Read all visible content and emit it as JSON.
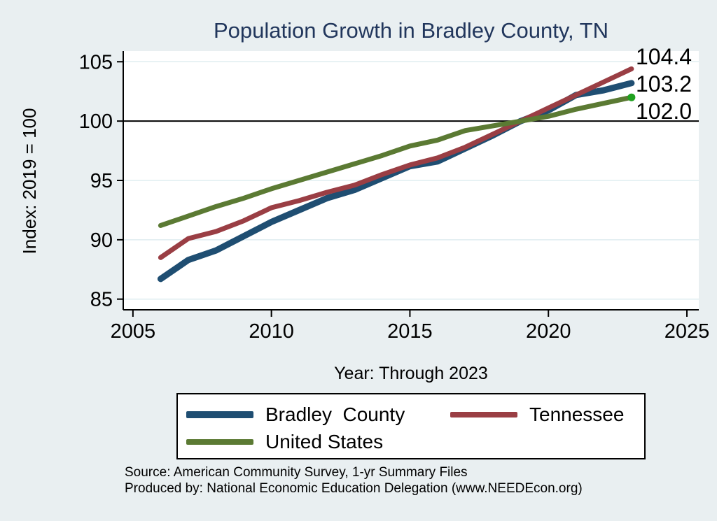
{
  "colors": {
    "background": "#e9eff1",
    "plot_background": "#ffffff",
    "title_text": "#21365c",
    "axis": "#000000"
  },
  "footnotes": {
    "source": "Source: American Community Survey, 1-yr Summary Files",
    "produced_by": "Produced by: National Economic Education Delegation (www.NEEDEcon.org)"
  },
  "chart_data": {
    "type": "line",
    "title": "Population Growth in Bradley County, TN",
    "xlabel": "Year: Through 2023",
    "ylabel": "Index: 2019 = 100",
    "grid": true,
    "grid_color": "#dfedf0",
    "legend_position": "bottom",
    "ref_line": 100,
    "xlim": [
      2004.65,
      2025.43
    ],
    "ylim": [
      84.1,
      105.9
    ],
    "x_ticks": [
      2005,
      2010,
      2015,
      2020,
      2025
    ],
    "y_ticks": [
      85,
      90,
      95,
      100,
      105
    ],
    "x": [
      2006,
      2007,
      2008,
      2009,
      2010,
      2011,
      2012,
      2013,
      2014,
      2015,
      2016,
      2017,
      2018,
      2019,
      2020,
      2021,
      2022,
      2023
    ],
    "series": [
      {
        "name": "Bradley  County",
        "color": "#1f4e72",
        "width": 9,
        "values": [
          86.7,
          88.3,
          89.1,
          90.3,
          91.5,
          92.5,
          93.5,
          94.2,
          95.2,
          96.2,
          96.6,
          97.7,
          98.8,
          100,
          100.9,
          102.2,
          102.6,
          103.2
        ]
      },
      {
        "name": "Tennessee",
        "color": "#9a3e44",
        "width": 7,
        "values": [
          88.5,
          90.1,
          90.7,
          91.6,
          92.7,
          93.3,
          94.0,
          94.6,
          95.5,
          96.3,
          96.9,
          97.8,
          98.9,
          100,
          101.1,
          102.2,
          103.3,
          104.4
        ]
      },
      {
        "name": "United States",
        "color": "#5b7a33",
        "width": 7,
        "end_dot": true,
        "values": [
          91.2,
          92.0,
          92.8,
          93.5,
          94.3,
          95.0,
          95.7,
          96.4,
          97.1,
          97.9,
          98.4,
          99.2,
          99.6,
          100,
          100.4,
          101.0,
          101.5,
          102.0
        ]
      }
    ],
    "end_dot_color": "#1fa11f",
    "end_labels": [
      {
        "text": "104.4",
        "x": 908,
        "y": 92
      },
      {
        "text": "103.2",
        "x": 908,
        "y": 131
      },
      {
        "text": "102.0",
        "x": 908,
        "y": 170
      }
    ]
  }
}
